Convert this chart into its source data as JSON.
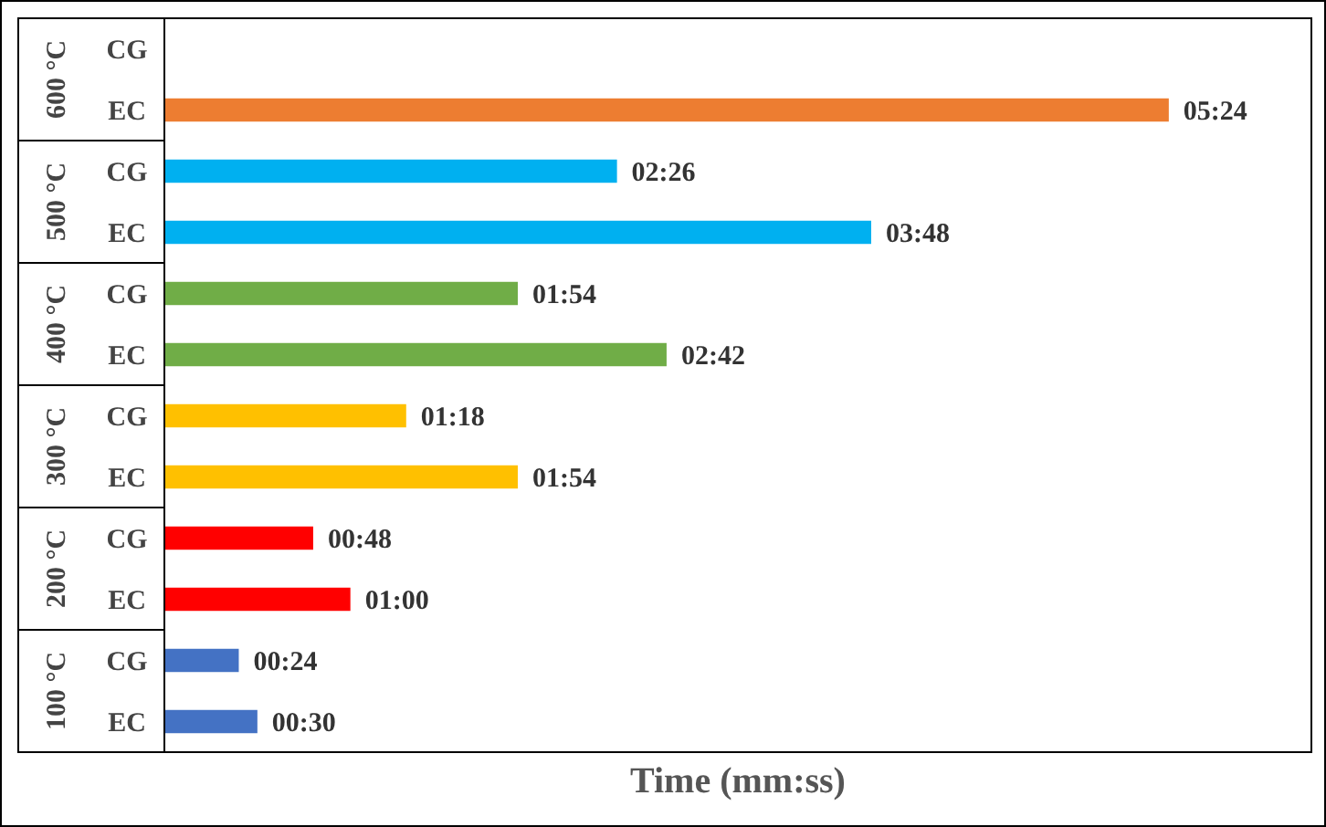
{
  "chart_data": {
    "type": "bar",
    "orientation": "horizontal",
    "xlabel": "Time (mm:ss)",
    "categories": [
      "CG",
      "EC",
      "CG",
      "EC",
      "CG",
      "EC",
      "CG",
      "EC",
      "CG",
      "EC",
      "CG",
      "EC"
    ],
    "annotations": [
      "600 °C",
      "500 °C",
      "400 °C",
      "300 °C",
      "200 °C",
      "100 °C"
    ],
    "values": [
      null,
      324,
      146,
      228,
      114,
      162,
      78,
      114,
      48,
      60,
      24,
      30
    ],
    "value_labels": [
      null,
      "05:24",
      "02:26",
      "03:48",
      "01:54",
      "02:42",
      "01:18",
      "01:54",
      "00:48",
      "01:00",
      "00:24",
      "00:30"
    ],
    "colors": [
      null,
      "#ed7d31",
      "#00b0f0",
      "#00b0f0",
      "#70ad47",
      "#70ad47",
      "#ffc000",
      "#ffc000",
      "#ff0000",
      "#ff0000",
      "#4472c4",
      "#4472c4"
    ],
    "xlim": [
      0,
      370
    ]
  }
}
